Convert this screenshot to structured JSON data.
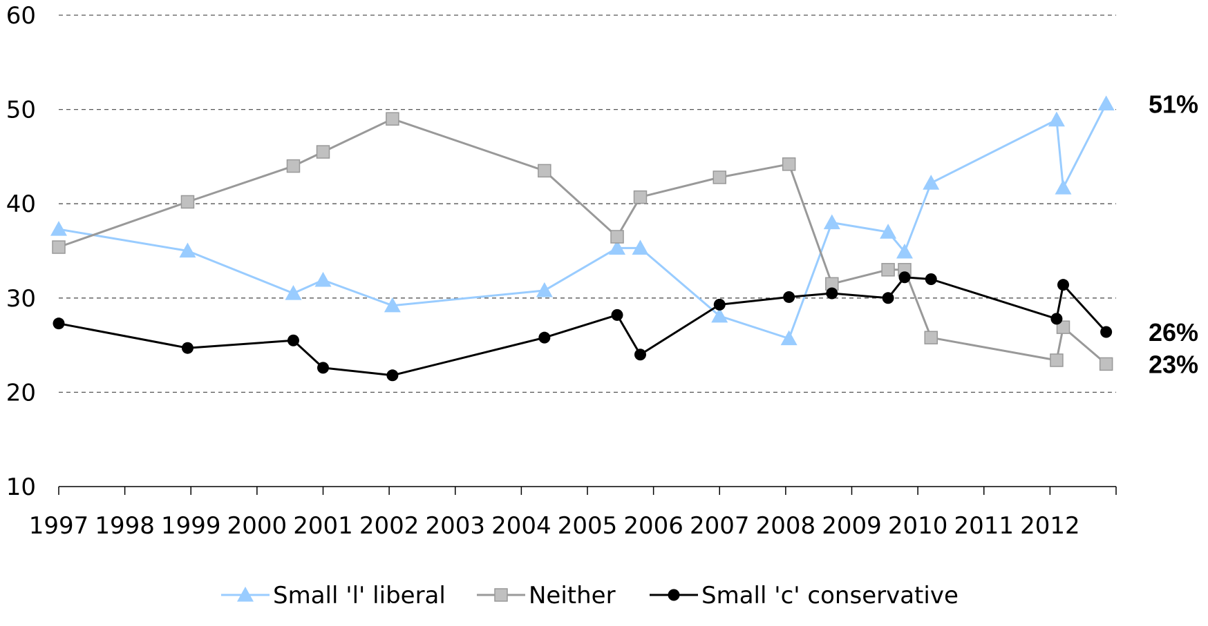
{
  "chart_data": {
    "type": "line",
    "title": "",
    "xlabel": "",
    "ylabel": "",
    "ylim": [
      10,
      60
    ],
    "yticks": [
      10,
      20,
      30,
      40,
      50,
      60
    ],
    "xlim": [
      1997,
      2013
    ],
    "xticks": [
      "1997",
      "1998",
      "1999",
      "2000",
      "2001",
      "2002",
      "2003",
      "2004",
      "2005",
      "2006",
      "2007",
      "2008",
      "2009",
      "2010",
      "2011",
      "2012"
    ],
    "grid": "horizontal dashed",
    "legend_position": "bottom",
    "series": [
      {
        "name": "Small 'l' liberal",
        "color": "#99ccff",
        "marker": "triangle",
        "x": [
          1997.0,
          1998.95,
          2000.55,
          2001.0,
          2002.05,
          2004.35,
          2005.45,
          2005.8,
          2007.0,
          2008.05,
          2008.7,
          2009.55,
          2009.8,
          2010.2,
          2012.1,
          2012.2,
          2012.85
        ],
        "y": [
          37.3,
          35.0,
          30.5,
          31.9,
          29.2,
          30.8,
          35.3,
          35.3,
          28.1,
          25.7,
          38.0,
          37.0,
          34.9,
          42.2,
          48.9,
          41.7,
          50.6
        ]
      },
      {
        "name": "Neither",
        "color": "#999999",
        "marker": "square",
        "x": [
          1997.0,
          1998.95,
          2000.55,
          2001.0,
          2002.05,
          2004.35,
          2005.45,
          2005.8,
          2007.0,
          2008.05,
          2008.7,
          2009.55,
          2009.8,
          2010.2,
          2012.1,
          2012.2,
          2012.85
        ],
        "y": [
          35.4,
          40.2,
          44.0,
          45.5,
          49.0,
          43.5,
          36.5,
          40.7,
          42.8,
          44.2,
          31.5,
          33.0,
          33.0,
          25.8,
          23.4,
          26.9,
          23.0
        ]
      },
      {
        "name": "Small 'c' conservative",
        "color": "#000000",
        "marker": "circle",
        "x": [
          1997.0,
          1998.95,
          2000.55,
          2001.0,
          2002.05,
          2004.35,
          2005.45,
          2005.8,
          2007.0,
          2008.05,
          2008.7,
          2009.55,
          2009.8,
          2010.2,
          2012.1,
          2012.2,
          2012.85
        ],
        "y": [
          27.3,
          24.7,
          25.5,
          22.6,
          21.8,
          25.8,
          28.2,
          24.0,
          29.3,
          30.1,
          30.5,
          30.0,
          32.2,
          32.0,
          27.8,
          31.4,
          26.4
        ]
      }
    ],
    "end_labels": [
      {
        "text": "51%",
        "series": 0
      },
      {
        "text": "26%",
        "series": 2
      },
      {
        "text": "23%",
        "series": 1
      }
    ]
  }
}
